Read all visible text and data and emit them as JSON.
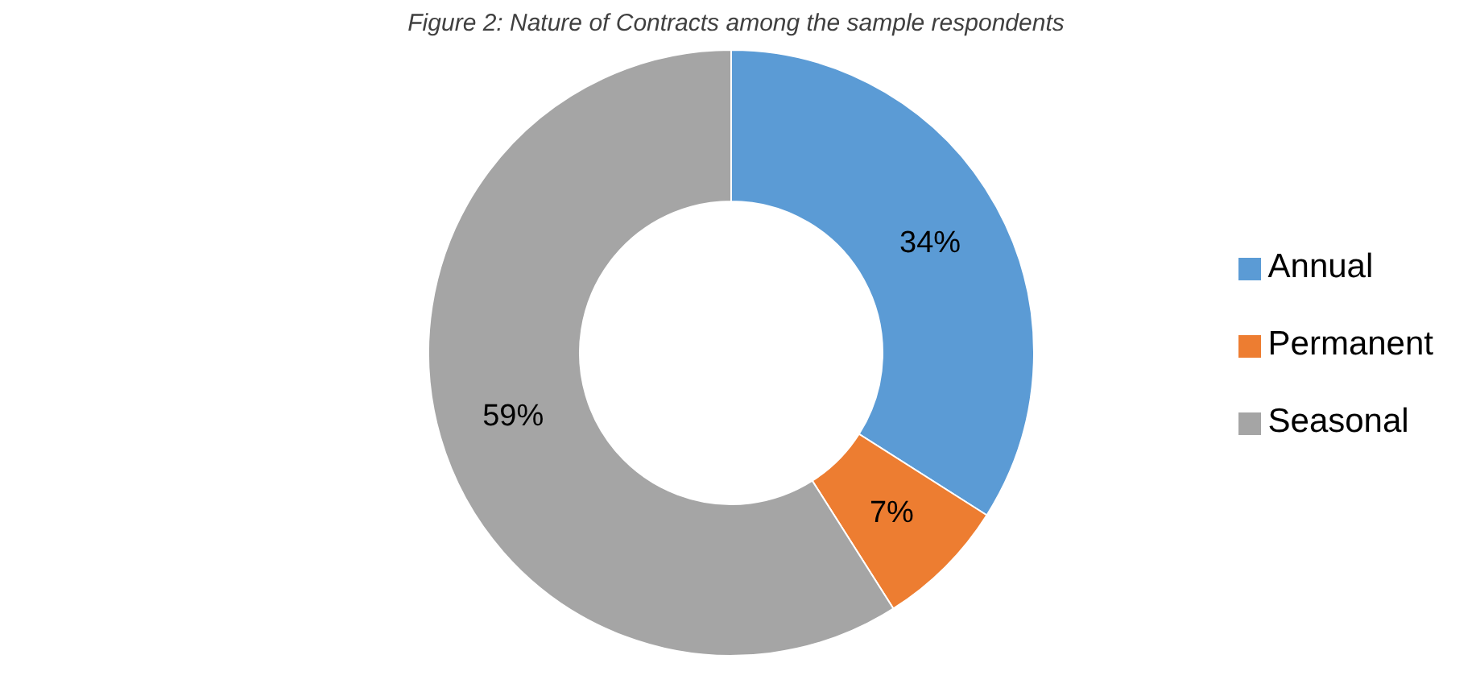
{
  "chart_data": {
    "type": "donut",
    "title": "Figure 2: Nature of Contracts among the sample respondents",
    "categories": [
      "Annual",
      "Permanent",
      "Seasonal"
    ],
    "values": [
      34,
      7,
      59
    ],
    "colors": [
      "#5b9bd5",
      "#ed7d31",
      "#a5a5a5"
    ],
    "value_labels": [
      "34%",
      "7%",
      "59%"
    ],
    "legend": "right"
  }
}
